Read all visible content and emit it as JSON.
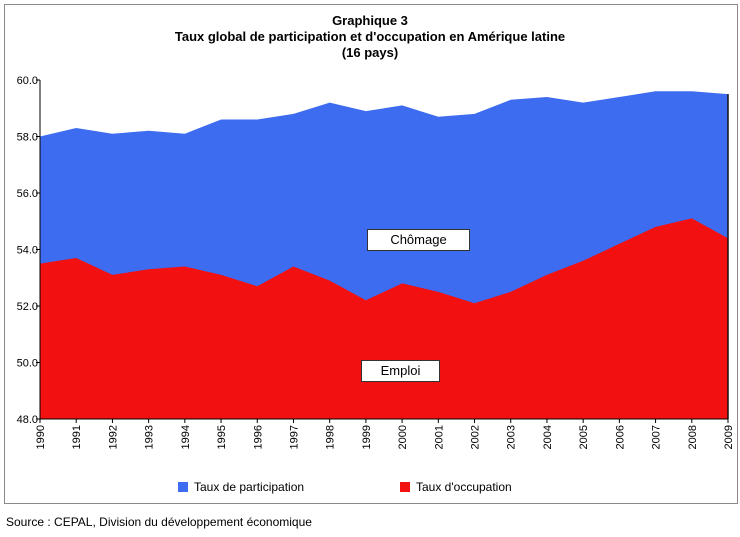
{
  "title": {
    "line1": "Graphique 3",
    "line2": "Taux global de participation et d'occupation en Amérique latine",
    "line3": "(16 pays)"
  },
  "annotations": {
    "chomage": "Chômage",
    "emploi": "Emploi"
  },
  "source": "Source : CEPAL, Division du développement économique",
  "colors": {
    "participation": "#3d6cf0",
    "occupation": "#f21010"
  },
  "chart_data": {
    "type": "area",
    "x": [
      "1990",
      "1991",
      "1992",
      "1993",
      "1994",
      "1995",
      "1996",
      "1997",
      "1998",
      "1999",
      "2000",
      "2001",
      "2002",
      "2003",
      "2004",
      "2005",
      "2006",
      "2007",
      "2008",
      "2009"
    ],
    "series": [
      {
        "name": "Taux de participation",
        "values": [
          58.0,
          58.3,
          58.1,
          58.2,
          58.1,
          58.6,
          58.6,
          58.8,
          59.2,
          58.9,
          59.1,
          58.7,
          58.8,
          59.3,
          59.4,
          59.2,
          59.4,
          59.6,
          59.6,
          59.5
        ]
      },
      {
        "name": "Taux d'occupation",
        "values": [
          53.5,
          53.7,
          53.1,
          53.3,
          53.4,
          53.1,
          52.7,
          53.4,
          52.9,
          52.2,
          52.8,
          52.5,
          52.1,
          52.5,
          53.1,
          53.6,
          54.2,
          54.8,
          55.1,
          54.4
        ]
      }
    ],
    "ylim": [
      48.0,
      60.0
    ],
    "yticks": [
      "48.0",
      "50.0",
      "52.0",
      "54.0",
      "56.0",
      "58.0",
      "60.0"
    ],
    "legend_position": "bottom"
  }
}
